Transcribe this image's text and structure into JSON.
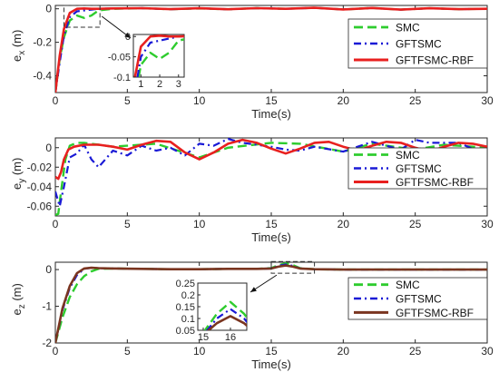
{
  "colors": {
    "smc": "#2ecc2e",
    "gftsmc": "#1a1ad6",
    "rbf": "#e8201f",
    "rbf_ez": "#7a3520"
  },
  "chart_data": [
    {
      "type": "line",
      "ylabel": "e_x(m)",
      "xlabel": "Time(s)",
      "xlim": [
        0,
        30
      ],
      "ylim": [
        -0.5,
        0.02
      ],
      "xticks": [
        "0",
        "5",
        "10",
        "15",
        "20",
        "25",
        "30"
      ],
      "yticks": [
        "-0.4",
        "-0.2",
        "0"
      ],
      "legend": {
        "placement": "right",
        "labels": [
          "SMC",
          "GFTSMC",
          "GFTFSMC-RBF"
        ]
      },
      "series": [
        {
          "name": "SMC",
          "x": [
            0,
            0.3,
            0.6,
            1,
            1.5,
            2,
            2.5,
            3,
            4,
            6,
            8,
            10,
            12,
            14,
            16,
            18,
            20,
            22,
            24,
            26,
            28,
            30
          ],
          "y": [
            -0.5,
            -0.3,
            -0.17,
            -0.07,
            -0.04,
            -0.055,
            -0.04,
            -0.01,
            0,
            0.003,
            -0.002,
            0.002,
            -0.003,
            0.004,
            0,
            0.006,
            -0.004,
            0.005,
            -0.005,
            0.003,
            -0.002,
            0
          ]
        },
        {
          "name": "GFTSMC",
          "x": [
            0,
            0.3,
            0.6,
            1,
            1.5,
            2,
            2.5,
            3,
            4,
            6,
            8,
            10,
            12,
            14,
            16,
            18,
            20,
            22,
            24,
            26,
            28,
            30
          ],
          "y": [
            -0.5,
            -0.32,
            -0.16,
            -0.05,
            -0.015,
            -0.01,
            -0.005,
            0,
            0.002,
            0.004,
            -0.002,
            0.003,
            -0.003,
            0.004,
            0,
            0.006,
            -0.004,
            0.005,
            -0.005,
            0.003,
            -0.002,
            0
          ]
        },
        {
          "name": "GFTFSMC-RBF",
          "x": [
            0,
            0.3,
            0.6,
            1,
            1.5,
            2,
            2.5,
            3,
            4,
            6,
            8,
            10,
            12,
            14,
            16,
            18,
            20,
            22,
            24,
            26,
            28,
            30
          ],
          "y": [
            -0.5,
            -0.28,
            -0.12,
            -0.025,
            0,
            0.002,
            0,
            0,
            0.002,
            0.004,
            -0.002,
            0.003,
            -0.003,
            0.004,
            0,
            0.006,
            -0.004,
            0.005,
            -0.005,
            0.003,
            -0.002,
            0
          ]
        }
      ],
      "inset": {
        "xlim": [
          0.6,
          3.3
        ],
        "ylim": [
          -0.1,
          0.005
        ],
        "xticks": [
          "1",
          "2",
          "3"
        ],
        "yticks": [
          "-0.1",
          "-0.05",
          "0"
        ],
        "zoom_window": {
          "x": [
            0.6,
            3.1
          ],
          "y": [
            -0.11,
            0.02
          ]
        }
      }
    },
    {
      "type": "line",
      "ylabel": "e_y (m)",
      "xlabel": "Time(s)",
      "xlim": [
        0,
        30
      ],
      "ylim": [
        -0.07,
        0.01
      ],
      "xticks": [
        "0",
        "5",
        "10",
        "15",
        "20",
        "25",
        "30"
      ],
      "yticks": [
        "-0.06",
        "-0.04",
        "-0.02",
        "0"
      ],
      "legend": {
        "placement": "right",
        "labels": [
          "SMC",
          "GFTSMC",
          "GFTFSMC-RBF"
        ]
      },
      "series": [
        {
          "name": "SMC",
          "x": [
            0,
            0.2,
            0.4,
            0.7,
            1,
            1.5,
            2,
            3,
            4,
            5,
            7,
            10,
            12,
            15,
            17,
            20,
            22,
            25,
            27,
            30
          ],
          "y": [
            -0.069,
            -0.068,
            -0.045,
            -0.012,
            0.002,
            0.005,
            0.005,
            0.003,
            0.001,
            0.002,
            0.004,
            -0.01,
            0,
            0.005,
            0.004,
            -0.004,
            0.004,
            -0.002,
            0.003,
            0
          ]
        },
        {
          "name": "GFTSMC",
          "x": [
            0,
            0.3,
            0.6,
            1,
            1.5,
            2,
            2.5,
            3,
            4,
            5,
            6,
            7,
            8,
            9,
            10,
            11,
            12,
            13,
            14,
            15,
            16,
            17,
            18,
            20,
            22,
            24,
            25,
            26,
            27,
            28,
            29,
            30
          ],
          "y": [
            -0.045,
            -0.06,
            -0.04,
            -0.01,
            -0.006,
            0.003,
            -0.012,
            -0.02,
            -0.003,
            -0.008,
            0.002,
            -0.003,
            0,
            -0.008,
            0.004,
            0.002,
            0.009,
            0.005,
            0.003,
            0.001,
            -0.002,
            -0.003,
            0.001,
            -0.004,
            0.006,
            -0.002,
            0.008,
            0.005,
            0.005,
            0.005,
            -0.001,
            -0.002
          ]
        },
        {
          "name": "GFTFSMC-RBF",
          "x": [
            0,
            0.2,
            0.4,
            0.6,
            0.9,
            1.3,
            2,
            3,
            4,
            5,
            6,
            7,
            8,
            9,
            10,
            11,
            12,
            13,
            14,
            15,
            16,
            17,
            18,
            19,
            20,
            21,
            22,
            23,
            24,
            25,
            26,
            27,
            28,
            29,
            30
          ],
          "y": [
            -0.03,
            -0.032,
            -0.025,
            -0.012,
            -0.002,
            0.001,
            0.003,
            0.003,
            0.001,
            -0.002,
            0.003,
            0.007,
            0.006,
            -0.005,
            -0.012,
            -0.005,
            0.004,
            0.008,
            0.005,
            -0.001,
            -0.006,
            -0.001,
            0.005,
            0.006,
            0.001,
            -0.003,
            0.002,
            0.006,
            0.005,
            0,
            -0.004,
            0.001,
            0.005,
            0.004,
            0.001
          ]
        }
      ]
    },
    {
      "type": "line",
      "ylabel": "e_z (m)",
      "xlabel": "Time(s)",
      "xlim": [
        0,
        30
      ],
      "ylim": [
        -2,
        0.2
      ],
      "xticks": [
        "0",
        "5",
        "10",
        "15",
        "20",
        "25",
        "30"
      ],
      "yticks": [
        "-2",
        "-1",
        "0"
      ],
      "legend": {
        "placement": "right",
        "labels": [
          "SMC",
          "GFTSMC",
          "GFTFSMC-RBF"
        ]
      },
      "series": [
        {
          "name": "SMC",
          "x": [
            0,
            0.5,
            1,
            1.5,
            2,
            2.5,
            3,
            4,
            6,
            8,
            10,
            12,
            14,
            15,
            15.5,
            16,
            16.5,
            17,
            18,
            20,
            25,
            30
          ],
          "y": [
            -2,
            -1.3,
            -0.75,
            -0.4,
            -0.18,
            -0.05,
            0.02,
            0.03,
            0.02,
            0.01,
            0.01,
            0.02,
            0.02,
            0.04,
            0.12,
            0.17,
            0.12,
            0.04,
            0.01,
            0,
            0,
            0
          ]
        },
        {
          "name": "GFTSMC",
          "x": [
            0,
            0.5,
            1,
            1.5,
            2,
            2.5,
            3,
            4,
            6,
            8,
            10,
            12,
            14,
            15,
            15.5,
            16,
            16.5,
            17,
            18,
            20,
            25,
            30
          ],
          "y": [
            -2,
            -1.1,
            -0.5,
            -0.15,
            0.02,
            0.05,
            0.04,
            0.03,
            0.02,
            0.01,
            0.01,
            0.02,
            0.02,
            0.03,
            0.1,
            0.14,
            0.1,
            0.03,
            0.01,
            0,
            0,
            0
          ]
        },
        {
          "name": "GFTFSMC-RBF",
          "x": [
            0,
            0.5,
            1,
            1.5,
            2,
            2.5,
            3,
            4,
            6,
            8,
            10,
            12,
            14,
            15,
            15.5,
            16,
            16.5,
            17,
            18,
            20,
            25,
            30
          ],
          "y": [
            -2,
            -1.05,
            -0.45,
            -0.1,
            0.03,
            0.05,
            0.04,
            0.03,
            0.02,
            0.01,
            0.01,
            0.02,
            0.02,
            0.03,
            0.08,
            0.11,
            0.08,
            0.03,
            0.01,
            0,
            0,
            0
          ]
        }
      ],
      "inset": {
        "xlim": [
          14.8,
          16.6
        ],
        "ylim": [
          0.05,
          0.25
        ],
        "xticks": [
          "15",
          "16"
        ],
        "yticks": [
          "0.25",
          "0.2",
          "0.15",
          "0.1",
          "0.05"
        ],
        "zoom_window": {
          "x": [
            15,
            18
          ],
          "y": [
            -0.1,
            0.22
          ]
        }
      }
    }
  ]
}
